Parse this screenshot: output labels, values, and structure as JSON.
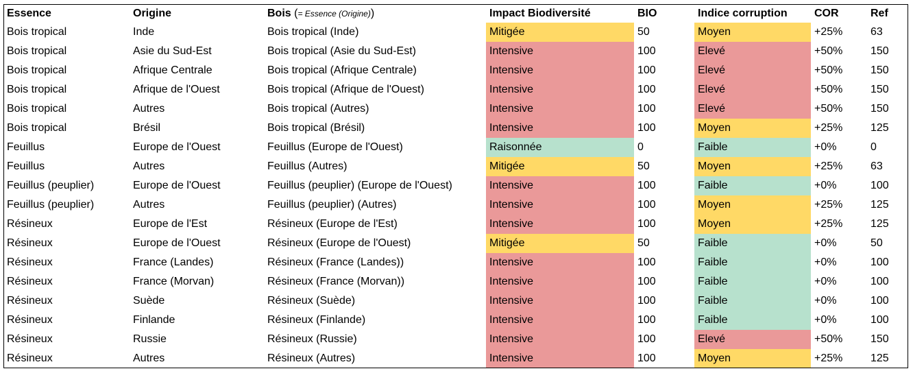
{
  "headers": {
    "essence": "Essence",
    "origine": "Origine",
    "bois": "Bois",
    "bois_paren_open": "(",
    "bois_hint": "= Essence (Origine)",
    "bois_paren_close": ")",
    "impact": "Impact Biodiversité",
    "bio": "BIO",
    "corruption": "Indice corruption",
    "cor": "COR",
    "ref": "Ref"
  },
  "colors": {
    "intensive": "#ea9999",
    "mitigee": "#ffd966",
    "raisonnee": "#b7e1cd",
    "eleve": "#ea9999",
    "moyen": "#ffd966",
    "faible": "#b7e1cd"
  },
  "rows": [
    {
      "essence": "Bois tropical",
      "origine": "Inde",
      "bois": "Bois tropical (Inde)",
      "impact": "Mitigée",
      "bio": "50",
      "corruption": "Moyen",
      "cor": "+25%",
      "ref": "63"
    },
    {
      "essence": "Bois tropical",
      "origine": "Asie du Sud-Est",
      "bois": "Bois tropical (Asie du Sud-Est)",
      "impact": "Intensive",
      "bio": "100",
      "corruption": "Elevé",
      "cor": "+50%",
      "ref": "150"
    },
    {
      "essence": "Bois tropical",
      "origine": "Afrique Centrale",
      "bois": "Bois tropical (Afrique Centrale)",
      "impact": "Intensive",
      "bio": "100",
      "corruption": "Elevé",
      "cor": "+50%",
      "ref": "150"
    },
    {
      "essence": "Bois tropical",
      "origine": "Afrique de l'Ouest",
      "bois": "Bois tropical (Afrique de l'Ouest)",
      "impact": "Intensive",
      "bio": "100",
      "corruption": "Elevé",
      "cor": "+50%",
      "ref": "150"
    },
    {
      "essence": "Bois tropical",
      "origine": "Autres",
      "bois": "Bois tropical (Autres)",
      "impact": "Intensive",
      "bio": "100",
      "corruption": "Elevé",
      "cor": "+50%",
      "ref": "150"
    },
    {
      "essence": "Bois tropical",
      "origine": "Brésil",
      "bois": "Bois tropical (Brésil)",
      "impact": "Intensive",
      "bio": "100",
      "corruption": "Moyen",
      "cor": "+25%",
      "ref": "125"
    },
    {
      "essence": "Feuillus",
      "origine": "Europe de l'Ouest",
      "bois": "Feuillus (Europe de l'Ouest)",
      "impact": "Raisonnée",
      "bio": "0",
      "corruption": "Faible",
      "cor": "+0%",
      "ref": "0"
    },
    {
      "essence": "Feuillus",
      "origine": "Autres",
      "bois": "Feuillus (Autres)",
      "impact": "Mitigée",
      "bio": "50",
      "corruption": "Moyen",
      "cor": "+25%",
      "ref": "63"
    },
    {
      "essence": "Feuillus (peuplier)",
      "origine": "Europe de l'Ouest",
      "bois": "Feuillus (peuplier) (Europe de l'Ouest)",
      "impact": "Intensive",
      "bio": "100",
      "corruption": "Faible",
      "cor": "+0%",
      "ref": "100"
    },
    {
      "essence": "Feuillus (peuplier)",
      "origine": "Autres",
      "bois": "Feuillus (peuplier) (Autres)",
      "impact": "Intensive",
      "bio": "100",
      "corruption": "Moyen",
      "cor": "+25%",
      "ref": "125"
    },
    {
      "essence": "Résineux",
      "origine": "Europe de l'Est",
      "bois": "Résineux (Europe de l'Est)",
      "impact": "Intensive",
      "bio": "100",
      "corruption": "Moyen",
      "cor": "+25%",
      "ref": "125"
    },
    {
      "essence": "Résineux",
      "origine": "Europe de l'Ouest",
      "bois": "Résineux (Europe de l'Ouest)",
      "impact": "Mitigée",
      "bio": "50",
      "corruption": "Faible",
      "cor": "+0%",
      "ref": "50"
    },
    {
      "essence": "Résineux",
      "origine": "France (Landes)",
      "bois": "Résineux (France (Landes))",
      "impact": "Intensive",
      "bio": "100",
      "corruption": "Faible",
      "cor": "+0%",
      "ref": "100"
    },
    {
      "essence": "Résineux",
      "origine": "France (Morvan)",
      "bois": "Résineux (France (Morvan))",
      "impact": "Intensive",
      "bio": "100",
      "corruption": "Faible",
      "cor": "+0%",
      "ref": "100"
    },
    {
      "essence": "Résineux",
      "origine": "Suède",
      "bois": "Résineux (Suède)",
      "impact": "Intensive",
      "bio": "100",
      "corruption": "Faible",
      "cor": "+0%",
      "ref": "100"
    },
    {
      "essence": "Résineux",
      "origine": "Finlande",
      "bois": "Résineux (Finlande)",
      "impact": "Intensive",
      "bio": "100",
      "corruption": "Faible",
      "cor": "+0%",
      "ref": "100"
    },
    {
      "essence": "Résineux",
      "origine": "Russie",
      "bois": "Résineux (Russie)",
      "impact": "Intensive",
      "bio": "100",
      "corruption": "Elevé",
      "cor": "+50%",
      "ref": "150"
    },
    {
      "essence": "Résineux",
      "origine": "Autres",
      "bois": "Résineux (Autres)",
      "impact": "Intensive",
      "bio": "100",
      "corruption": "Moyen",
      "cor": "+25%",
      "ref": "125"
    }
  ]
}
